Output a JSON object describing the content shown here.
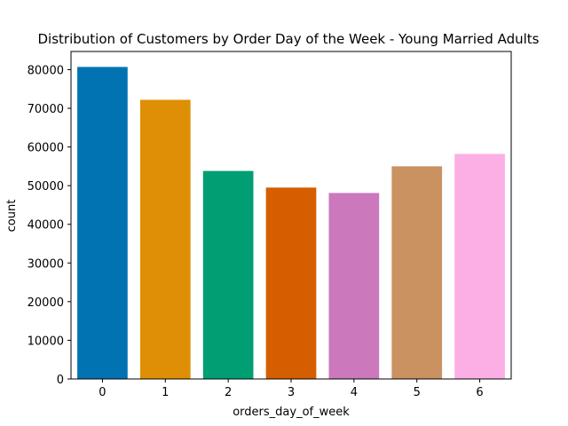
{
  "chart_data": {
    "type": "bar",
    "title": "Distribution of Customers by Order Day of the Week - Young Married Adults",
    "xlabel": "orders_day_of_week",
    "ylabel": "count",
    "categories": [
      "0",
      "1",
      "2",
      "3",
      "4",
      "5",
      "6"
    ],
    "values": [
      80700,
      72200,
      53800,
      49500,
      48100,
      55000,
      58200
    ],
    "colors": [
      "#0173b2",
      "#de8f05",
      "#029e73",
      "#d55e00",
      "#cc78bc",
      "#ca9161",
      "#fbafe4"
    ],
    "ylim": [
      0,
      84700
    ],
    "yticks": [
      0,
      10000,
      20000,
      30000,
      40000,
      50000,
      60000,
      70000,
      80000
    ],
    "ytick_labels": [
      "0",
      "10000",
      "20000",
      "30000",
      "40000",
      "50000",
      "60000",
      "70000",
      "80000"
    ],
    "grid": false,
    "legend": "none"
  }
}
